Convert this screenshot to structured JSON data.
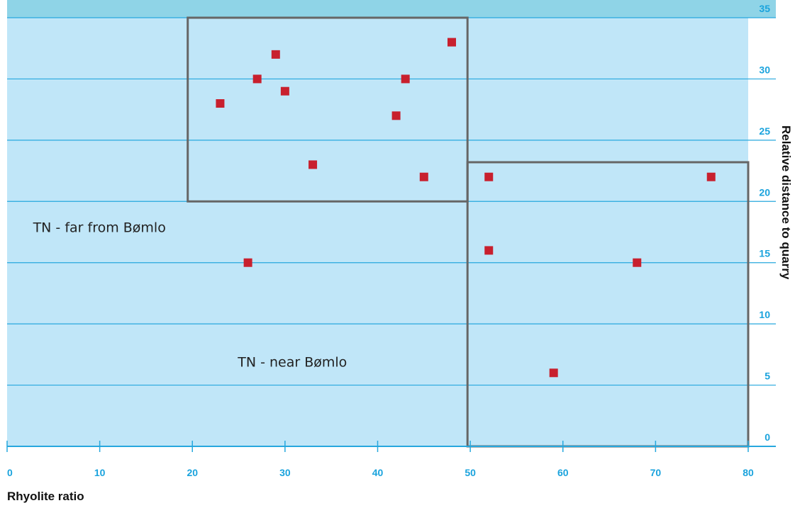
{
  "chart_data": {
    "type": "scatter",
    "title": "",
    "xlabel": "Rhyolite ratio",
    "ylabel": "Relative distance to quarry",
    "xlim": [
      0,
      80
    ],
    "ylim": [
      0,
      35
    ],
    "x_ticks": [
      0,
      10,
      20,
      30,
      40,
      50,
      60,
      70,
      80
    ],
    "y_ticks": [
      0,
      5,
      10,
      15,
      20,
      25,
      30,
      35
    ],
    "grid": "horizontal",
    "colors": {
      "plot_background": "#c0e6f8",
      "top_band": "#8fd4e7",
      "gridline": "#27a8de",
      "axis_line": "#27a8de",
      "tick_label": "#1aa3dd",
      "marker": "#c8202e",
      "region_border": "#666666"
    },
    "series": [
      {
        "marker": "square",
        "points": [
          {
            "x": 23,
            "y": 28
          },
          {
            "x": 27,
            "y": 30
          },
          {
            "x": 29,
            "y": 32
          },
          {
            "x": 30,
            "y": 29
          },
          {
            "x": 33,
            "y": 23
          },
          {
            "x": 42,
            "y": 27
          },
          {
            "x": 43,
            "y": 30
          },
          {
            "x": 45,
            "y": 22
          },
          {
            "x": 48,
            "y": 33
          },
          {
            "x": 26,
            "y": 15
          },
          {
            "x": 52,
            "y": 22
          },
          {
            "x": 52,
            "y": 16
          },
          {
            "x": 59,
            "y": 6
          },
          {
            "x": 68,
            "y": 15
          },
          {
            "x": 76,
            "y": 22
          }
        ]
      }
    ],
    "regions": [
      {
        "x0": 19.5,
        "x1": 49.7,
        "y0": 20,
        "y1": 35
      },
      {
        "x0": 49.7,
        "x1": 80,
        "y0": 0,
        "y1": 23.2
      }
    ],
    "annotations": [
      {
        "text": "TN - far from Bømlo",
        "x": 2.8,
        "y": 17.5
      },
      {
        "text": "TN - near Bømlo",
        "x": 24.9,
        "y": 6.5
      }
    ]
  }
}
